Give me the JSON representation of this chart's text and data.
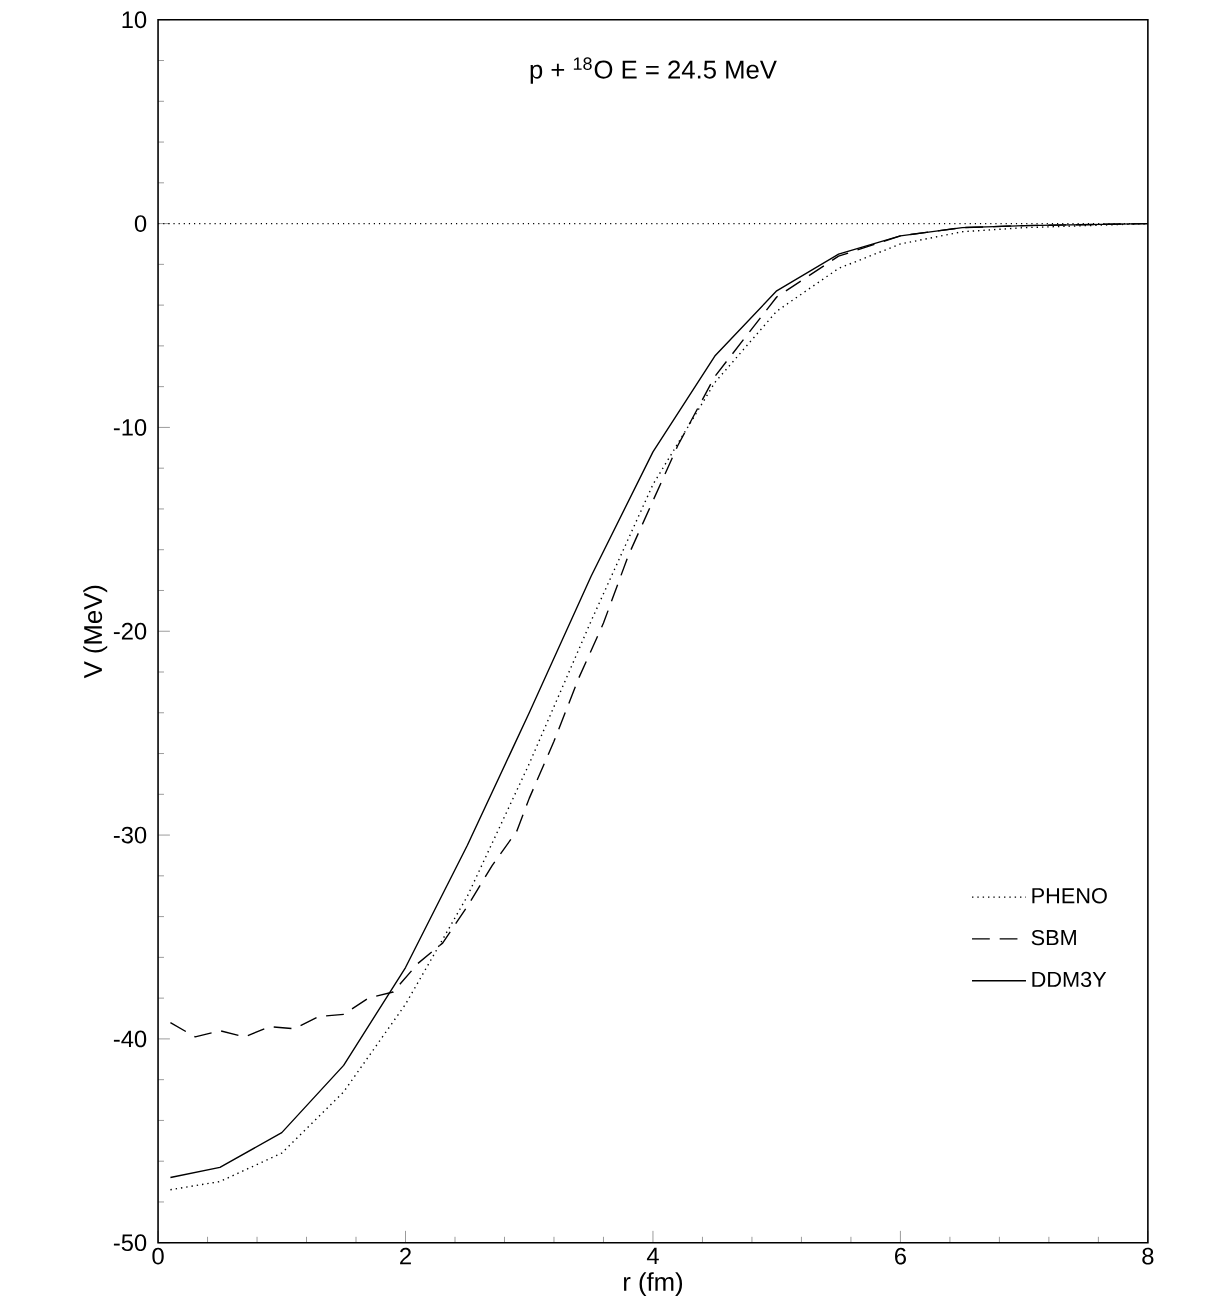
{
  "chart_data": {
    "type": "line",
    "title": "p + $^{18}$O   E = 24.5  MeV",
    "xlabel": "r (fm)",
    "ylabel": "V (MeV)",
    "xlim": [
      0,
      8
    ],
    "ylim": [
      -50,
      10
    ],
    "xticks": [
      0,
      2,
      4,
      6,
      8
    ],
    "yticks": [
      -50,
      -40,
      -30,
      -20,
      -10,
      0,
      10
    ],
    "legend": "bottom right",
    "grid": false,
    "ref_lines": [
      {
        "axis": "y",
        "value": 0,
        "line_style": "dotted"
      }
    ],
    "series": [
      {
        "name": "PHENO",
        "color": "#000000",
        "line_style": "dotted",
        "x": [
          0.1,
          0.5,
          1.0,
          1.5,
          2.0,
          2.5,
          3.0,
          3.5,
          4.0,
          4.5,
          5.0,
          5.5,
          6.0,
          6.5,
          7.0,
          7.5,
          8.0
        ],
        "values": [
          -47.4,
          -47,
          -45.6,
          -42.6,
          -38.3,
          -33,
          -26.5,
          -19.5,
          -12.8,
          -7.8,
          -4.3,
          -2.2,
          -1.0,
          -0.4,
          -0.2,
          -0.1,
          0
        ]
      },
      {
        "name": "SBM",
        "color": "#000000",
        "line_style": "dashed",
        "x": [
          0.1,
          0.3,
          0.5,
          0.7,
          0.9,
          1.1,
          1.3,
          1.5,
          1.7,
          1.9,
          2.1,
          2.3,
          2.5,
          2.7,
          2.9,
          3.0,
          3.2,
          3.4,
          3.6,
          3.8,
          4.0,
          4.2,
          4.5,
          5.0,
          5.5,
          6.0,
          6.5,
          7.0,
          8.0
        ],
        "values": [
          -39.2,
          -39.9,
          -39.6,
          -39.9,
          -39.4,
          -39.5,
          -38.9,
          -38.8,
          -38,
          -37.7,
          -36.3,
          -35.3,
          -33.5,
          -31.5,
          -29.8,
          -28.2,
          -25.4,
          -22.3,
          -19.6,
          -16.3,
          -13.6,
          -10.9,
          -7.5,
          -3.6,
          -1.6,
          -0.6,
          -0.2,
          -0.1,
          0
        ]
      },
      {
        "name": "DDM3Y",
        "color": "#000000",
        "line_style": "solid",
        "x": [
          0.1,
          0.5,
          1.0,
          1.5,
          2.0,
          2.5,
          3.0,
          3.5,
          4.0,
          4.5,
          5.0,
          5.5,
          6.0,
          6.5,
          7.0,
          8.0
        ],
        "values": [
          -46.8,
          -46.3,
          -44.6,
          -41.3,
          -36.5,
          -30.5,
          -24,
          -17.3,
          -11.2,
          -6.5,
          -3.3,
          -1.5,
          -0.6,
          -0.2,
          -0.1,
          0
        ]
      }
    ]
  }
}
